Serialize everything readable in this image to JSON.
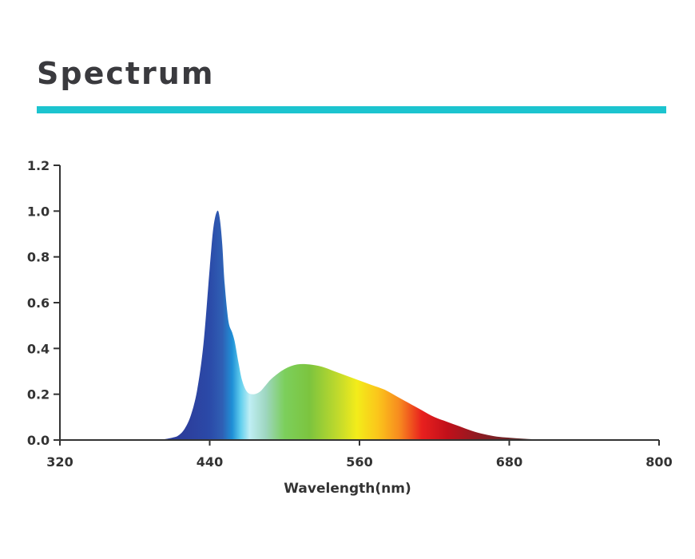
{
  "header": {
    "title": "Spectrum",
    "rule_color": "#1cc4cf"
  },
  "chart_data": {
    "type": "area",
    "xlabel": "Wavelength(nm)",
    "ylabel": "",
    "xlim": [
      320,
      800
    ],
    "ylim": [
      0,
      1.2
    ],
    "x_ticks": [
      320,
      440,
      560,
      680,
      800
    ],
    "y_ticks": [
      0.0,
      0.2,
      0.4,
      0.6,
      0.8,
      1.0,
      1.2
    ],
    "grid": false,
    "series": [
      {
        "x": [
          400,
          410,
          415,
          420,
          425,
          430,
          435,
          440,
          443,
          446,
          448,
          450,
          452,
          455,
          458,
          460,
          463,
          466,
          470,
          475,
          480,
          485,
          490,
          500,
          510,
          520,
          530,
          540,
          550,
          560,
          570,
          580,
          590,
          600,
          610,
          620,
          630,
          640,
          650,
          660,
          670,
          680,
          690,
          700,
          710,
          720,
          730
        ],
        "y": [
          0.0,
          0.01,
          0.02,
          0.05,
          0.11,
          0.22,
          0.42,
          0.75,
          0.93,
          1.0,
          0.97,
          0.86,
          0.68,
          0.52,
          0.47,
          0.43,
          0.34,
          0.26,
          0.21,
          0.2,
          0.21,
          0.24,
          0.27,
          0.31,
          0.33,
          0.33,
          0.32,
          0.3,
          0.28,
          0.26,
          0.24,
          0.22,
          0.19,
          0.16,
          0.13,
          0.1,
          0.08,
          0.06,
          0.04,
          0.025,
          0.015,
          0.01,
          0.006,
          0.003,
          0.001,
          0.0,
          0.0
        ]
      }
    ],
    "colors": {
      "gradient": [
        {
          "nm": 420,
          "color": "#2c3e9c"
        },
        {
          "nm": 440,
          "color": "#2b4aa8"
        },
        {
          "nm": 450,
          "color": "#2f5fb4"
        },
        {
          "nm": 458,
          "color": "#1f8fd6"
        },
        {
          "nm": 465,
          "color": "#63d0ee"
        },
        {
          "nm": 472,
          "color": "#bfeef4"
        },
        {
          "nm": 485,
          "color": "#9ed6c0"
        },
        {
          "nm": 500,
          "color": "#7ccf5c"
        },
        {
          "nm": 520,
          "color": "#7cc43e"
        },
        {
          "nm": 545,
          "color": "#c8dc2a"
        },
        {
          "nm": 558,
          "color": "#f3ec1a"
        },
        {
          "nm": 575,
          "color": "#fbc51b"
        },
        {
          "nm": 592,
          "color": "#f78a1f"
        },
        {
          "nm": 610,
          "color": "#e8201e"
        },
        {
          "nm": 630,
          "color": "#c2101a"
        },
        {
          "nm": 655,
          "color": "#8e1b22"
        },
        {
          "nm": 690,
          "color": "#5e2a2a"
        }
      ],
      "axis": "#333333"
    }
  }
}
